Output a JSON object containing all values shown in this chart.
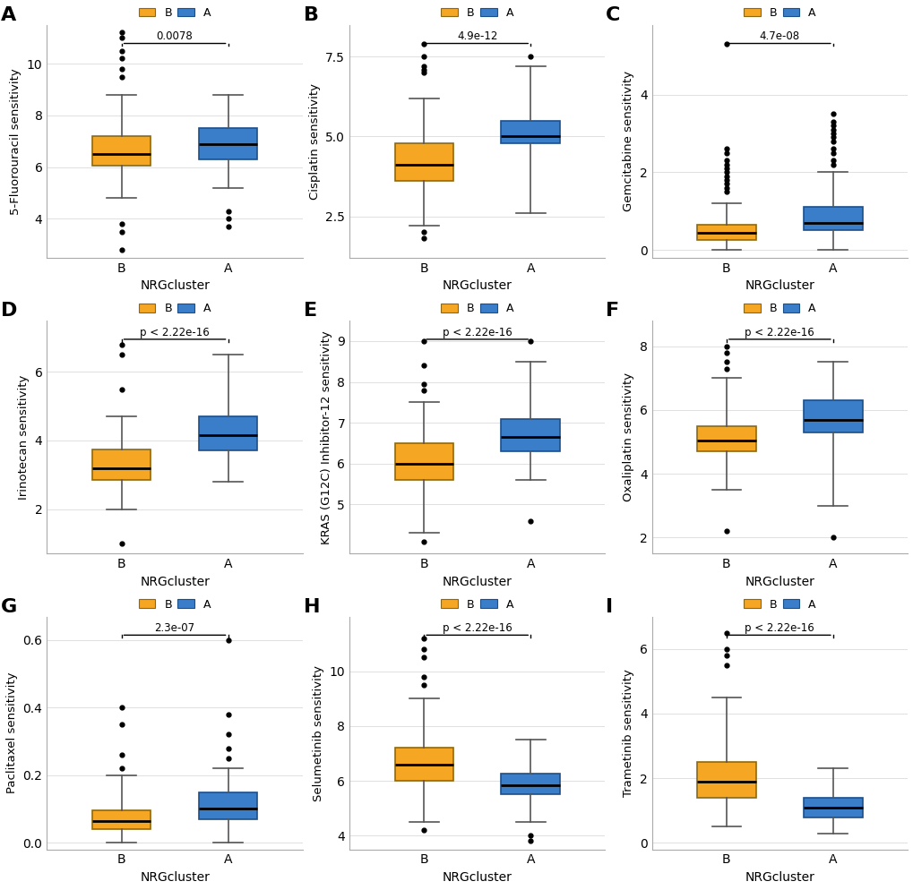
{
  "panels": [
    {
      "label": "A",
      "ylabel": "5-Fluorouracil sensitivity",
      "pvalue": "0.0078",
      "B": {
        "median": 6.5,
        "q1": 6.05,
        "q3": 7.2,
        "whislo": 4.8,
        "whishi": 8.8,
        "fliers_low": [
          3.8,
          3.5,
          2.8
        ],
        "fliers_high": [
          9.5,
          9.8,
          10.2,
          10.5,
          11.0,
          11.2
        ]
      },
      "A": {
        "median": 6.9,
        "q1": 6.3,
        "q3": 7.5,
        "whislo": 5.2,
        "whishi": 8.8,
        "fliers_low": [
          4.3,
          4.0,
          3.7
        ],
        "fliers_high": []
      },
      "ylim": [
        2.5,
        11.5
      ],
      "yticks": [
        4,
        6,
        8,
        10
      ]
    },
    {
      "label": "B",
      "ylabel": "Cisplatin sensitivity",
      "pvalue": "4.9e-12",
      "B": {
        "median": 4.1,
        "q1": 3.6,
        "q3": 4.8,
        "whislo": 2.2,
        "whishi": 6.2,
        "fliers_low": [
          2.0,
          1.8
        ],
        "fliers_high": [
          7.0,
          7.1,
          7.2,
          7.5,
          7.9
        ]
      },
      "A": {
        "median": 5.0,
        "q1": 4.8,
        "q3": 5.5,
        "whislo": 2.6,
        "whishi": 7.2,
        "fliers_low": [],
        "fliers_high": [
          7.5
        ]
      },
      "ylim": [
        1.2,
        8.5
      ],
      "yticks": [
        2.5,
        5.0,
        7.5
      ]
    },
    {
      "label": "C",
      "ylabel": "Gemcitabine sensitivity",
      "pvalue": "4.7e-08",
      "B": {
        "median": 0.45,
        "q1": 0.25,
        "q3": 0.65,
        "whislo": 0.0,
        "whishi": 1.2,
        "fliers_low": [],
        "fliers_high": [
          1.5,
          1.6,
          1.7,
          1.8,
          1.9,
          2.0,
          2.1,
          2.2,
          2.3,
          2.5,
          2.6,
          5.3
        ]
      },
      "A": {
        "median": 0.7,
        "q1": 0.5,
        "q3": 1.1,
        "whislo": 0.0,
        "whishi": 2.0,
        "fliers_low": [],
        "fliers_high": [
          2.2,
          2.3,
          2.5,
          2.6,
          2.8,
          2.9,
          3.0,
          3.1,
          3.2,
          3.3,
          3.5
        ]
      },
      "ylim": [
        -0.2,
        5.8
      ],
      "yticks": [
        0,
        2,
        4
      ]
    },
    {
      "label": "D",
      "ylabel": "Irinotecan sensitivity",
      "pvalue": "p < 2.22e-16",
      "B": {
        "median": 3.2,
        "q1": 2.85,
        "q3": 3.75,
        "whislo": 2.0,
        "whishi": 4.7,
        "fliers_low": [
          1.0
        ],
        "fliers_high": [
          5.5,
          6.5,
          6.8
        ]
      },
      "A": {
        "median": 4.15,
        "q1": 3.7,
        "q3": 4.7,
        "whislo": 2.8,
        "whishi": 6.5,
        "fliers_low": [],
        "fliers_high": []
      },
      "ylim": [
        0.7,
        7.5
      ],
      "yticks": [
        2,
        4,
        6
      ]
    },
    {
      "label": "E",
      "ylabel": "KRAS (G12C) Inhibitor-12 sensitivity",
      "pvalue": "p < 2.22e-16",
      "B": {
        "median": 6.0,
        "q1": 5.6,
        "q3": 6.5,
        "whislo": 4.3,
        "whishi": 7.5,
        "fliers_low": [
          4.1
        ],
        "fliers_high": [
          7.8,
          7.95,
          8.4,
          9.0
        ]
      },
      "A": {
        "median": 6.65,
        "q1": 6.3,
        "q3": 7.1,
        "whislo": 5.6,
        "whishi": 8.5,
        "fliers_low": [
          4.6
        ],
        "fliers_high": [
          9.0
        ]
      },
      "ylim": [
        3.8,
        9.5
      ],
      "yticks": [
        5,
        6,
        7,
        8,
        9
      ]
    },
    {
      "label": "F",
      "ylabel": "Oxaliplatin sensitivity",
      "pvalue": "p < 2.22e-16",
      "B": {
        "median": 5.05,
        "q1": 4.7,
        "q3": 5.5,
        "whislo": 3.5,
        "whishi": 7.0,
        "fliers_low": [
          2.2
        ],
        "fliers_high": [
          7.3,
          7.5,
          7.8,
          8.0
        ]
      },
      "A": {
        "median": 5.7,
        "q1": 5.3,
        "q3": 6.3,
        "whislo": 3.0,
        "whishi": 7.5,
        "fliers_low": [
          2.0
        ],
        "fliers_high": []
      },
      "ylim": [
        1.5,
        8.8
      ],
      "yticks": [
        2,
        4,
        6,
        8
      ]
    },
    {
      "label": "G",
      "ylabel": "Paclitaxel sensitivity",
      "pvalue": "2.3e-07",
      "B": {
        "median": 0.065,
        "q1": 0.04,
        "q3": 0.095,
        "whislo": 0.0,
        "whishi": 0.2,
        "fliers_low": [],
        "fliers_high": [
          0.22,
          0.26,
          0.35,
          0.4
        ]
      },
      "A": {
        "median": 0.1,
        "q1": 0.07,
        "q3": 0.15,
        "whislo": 0.0,
        "whishi": 0.22,
        "fliers_low": [],
        "fliers_high": [
          0.25,
          0.28,
          0.32,
          0.38,
          0.6
        ]
      },
      "ylim": [
        -0.02,
        0.67
      ],
      "yticks": [
        0.0,
        0.2,
        0.4,
        0.6
      ]
    },
    {
      "label": "H",
      "ylabel": "Selumetinib sensitivity",
      "pvalue": "p < 2.22e-16",
      "B": {
        "median": 6.6,
        "q1": 6.0,
        "q3": 7.2,
        "whislo": 4.5,
        "whishi": 9.0,
        "fliers_low": [
          4.2
        ],
        "fliers_high": [
          9.5,
          9.8,
          10.5,
          10.8,
          11.2
        ]
      },
      "A": {
        "median": 5.85,
        "q1": 5.5,
        "q3": 6.25,
        "whislo": 4.5,
        "whishi": 7.5,
        "fliers_low": [
          4.0,
          3.8
        ],
        "fliers_high": []
      },
      "ylim": [
        3.5,
        12.0
      ],
      "yticks": [
        4,
        6,
        8,
        10
      ]
    },
    {
      "label": "I",
      "ylabel": "Trametinib sensitivity",
      "pvalue": "p < 2.22e-16",
      "B": {
        "median": 1.9,
        "q1": 1.4,
        "q3": 2.5,
        "whislo": 0.5,
        "whishi": 4.5,
        "fliers_low": [],
        "fliers_high": [
          5.5,
          5.8,
          6.0,
          6.5
        ]
      },
      "A": {
        "median": 1.1,
        "q1": 0.8,
        "q3": 1.4,
        "whislo": 0.3,
        "whishi": 2.3,
        "fliers_low": [],
        "fliers_high": []
      },
      "ylim": [
        -0.2,
        7.0
      ],
      "yticks": [
        0,
        2,
        4,
        6
      ]
    }
  ],
  "color_B": "#F5A623",
  "color_A": "#3A7DC9",
  "background": "#FFFFFF",
  "xlabel": "NRGcluster",
  "tick_labels": [
    "B",
    "A"
  ]
}
